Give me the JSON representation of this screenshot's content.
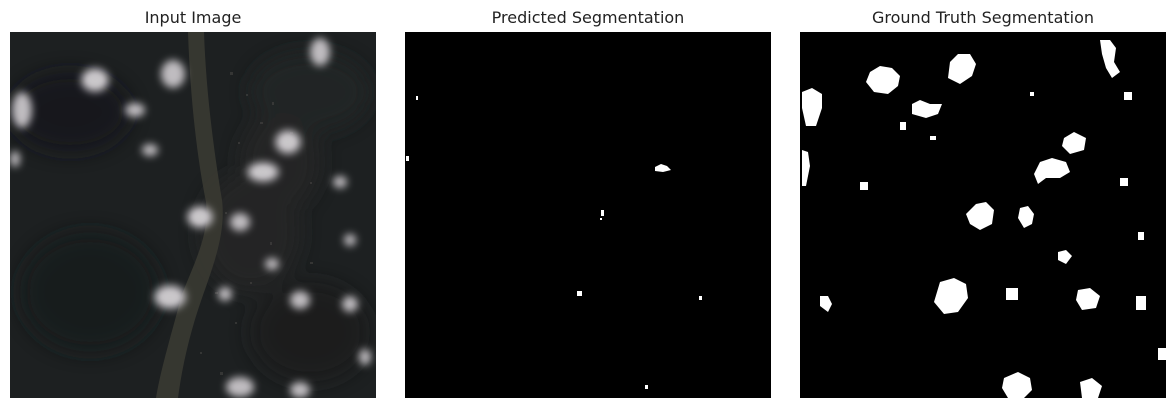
{
  "panels": [
    {
      "title": "Input Image"
    },
    {
      "title": "Predicted Segmentation"
    },
    {
      "title": "Ground Truth Segmentation"
    }
  ],
  "colors": {
    "background": "#ffffff",
    "mask_background": "#000000",
    "mask_foreground": "#ffffff",
    "satellite_base": "#1d2021",
    "river": "#3a3a32",
    "cloud": "#bfbcc0"
  }
}
